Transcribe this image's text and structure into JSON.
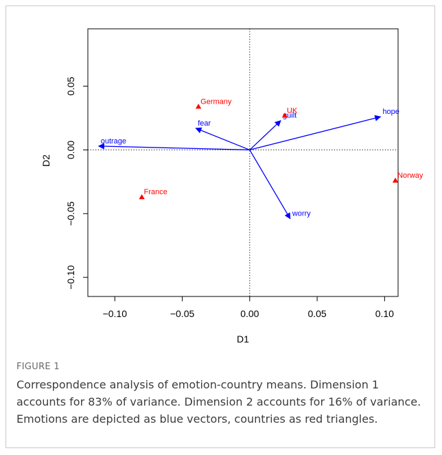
{
  "caption": {
    "label": "FIGURE 1",
    "text": "Correspondence analysis of emotion-country means. Dimension 1 accounts for 83% of variance. Dimension 2 accounts for 16% of variance. Emotions are depicted as blue vectors, countries as red triangles."
  },
  "chart_data": {
    "type": "scatter",
    "title": "",
    "xlabel": "D1",
    "ylabel": "D2",
    "xlim": [
      -0.12,
      0.11
    ],
    "ylim": [
      -0.115,
      0.095
    ],
    "x_ticks": [
      -0.1,
      -0.05,
      0.0,
      0.05,
      0.1
    ],
    "x_tick_labels": [
      "−0.10",
      "−0.05",
      "0.00",
      "0.05",
      "0.10"
    ],
    "y_ticks": [
      -0.1,
      -0.05,
      0.0,
      0.05
    ],
    "y_tick_labels": [
      "−0.10",
      "−0.05",
      "0.00",
      "0.05"
    ],
    "reference_lines": {
      "x": 0,
      "y": 0,
      "style": "dotted"
    },
    "countries": {
      "color": "#ff0000",
      "marker": "triangle",
      "points": [
        {
          "label": "Germany",
          "x": -0.038,
          "y": 0.034
        },
        {
          "label": "UK",
          "x": 0.026,
          "y": 0.027
        },
        {
          "label": "France",
          "x": -0.08,
          "y": -0.037
        },
        {
          "label": "Norway",
          "x": 0.108,
          "y": -0.024
        }
      ]
    },
    "emotions": {
      "color": "#0000ff",
      "marker": "vector",
      "vectors": [
        {
          "label": "outrage",
          "x": -0.112,
          "y": 0.003
        },
        {
          "label": "fear",
          "x": -0.04,
          "y": 0.017
        },
        {
          "label": "guilt",
          "x": 0.023,
          "y": 0.023
        },
        {
          "label": "hope",
          "x": 0.097,
          "y": 0.026
        },
        {
          "label": "worry",
          "x": 0.03,
          "y": -0.054
        }
      ]
    }
  }
}
